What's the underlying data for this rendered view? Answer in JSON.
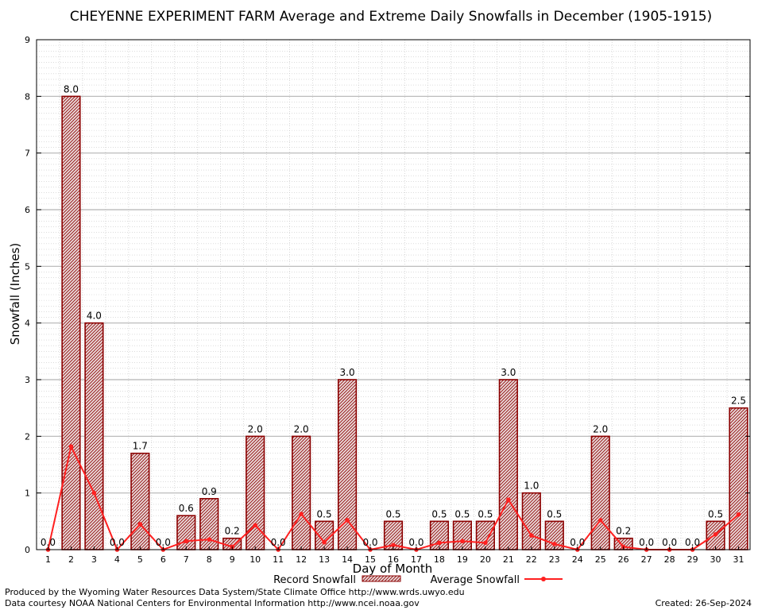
{
  "chart_data": {
    "type": "bar",
    "title": "CHEYENNE EXPERIMENT FARM Average and Extreme Daily Snowfalls in December (1905-1915)",
    "xlabel": "Day of Month",
    "ylabel": "Snowfall (Inches)",
    "ylim": [
      0,
      9
    ],
    "yticks": [
      "0",
      "1",
      "2",
      "3",
      "4",
      "5",
      "6",
      "7",
      "8",
      "9"
    ],
    "grid": true,
    "legend_position": "bottom",
    "categories": [
      "1",
      "2",
      "3",
      "4",
      "5",
      "6",
      "7",
      "8",
      "9",
      "10",
      "11",
      "12",
      "13",
      "14",
      "15",
      "16",
      "17",
      "18",
      "19",
      "20",
      "21",
      "22",
      "23",
      "24",
      "25",
      "26",
      "27",
      "28",
      "29",
      "30",
      "31"
    ],
    "series": [
      {
        "name": "Record Snowfall",
        "kind": "bar",
        "color": "#8b0000",
        "values": [
          0.0,
          8.0,
          4.0,
          0.0,
          1.7,
          0.0,
          0.6,
          0.9,
          0.2,
          2.0,
          0.0,
          2.0,
          0.5,
          3.0,
          0.0,
          0.5,
          0.0,
          0.5,
          0.5,
          0.5,
          3.0,
          1.0,
          0.5,
          0.0,
          2.0,
          0.2,
          0.0,
          0.0,
          0.0,
          0.5,
          2.5
        ],
        "labels": [
          "0.0",
          "8.0",
          "4.0",
          "0.0",
          "1.7",
          "0.0",
          "0.6",
          "0.9",
          "0.2",
          "2.0",
          "0.0",
          "2.0",
          "0.5",
          "3.0",
          "0.0",
          "0.5",
          "0.0",
          "0.5",
          "0.5",
          "0.5",
          "3.0",
          "1.0",
          "0.5",
          "0.0",
          "2.0",
          "0.2",
          "0.0",
          "0.0",
          "0.0",
          "0.5",
          "2.5"
        ]
      },
      {
        "name": "Average Snowfall",
        "kind": "line",
        "color": "#ff2020",
        "values": [
          0.0,
          1.82,
          1.0,
          0.0,
          0.45,
          0.0,
          0.15,
          0.18,
          0.05,
          0.43,
          0.0,
          0.63,
          0.13,
          0.52,
          0.0,
          0.08,
          0.0,
          0.12,
          0.15,
          0.12,
          0.88,
          0.25,
          0.1,
          0.0,
          0.52,
          0.05,
          0.0,
          0.0,
          0.0,
          0.27,
          0.62
        ]
      }
    ]
  },
  "footer": {
    "produced_by": "Produced by the Wyoming Water Resources Data System/State Climate Office http://www.wrds.uwyo.edu",
    "courtesy": "Data courtesy NOAA National Centers for Environmental Information http://www.ncei.noaa.gov",
    "created": "Created:  26-Sep-2024"
  }
}
